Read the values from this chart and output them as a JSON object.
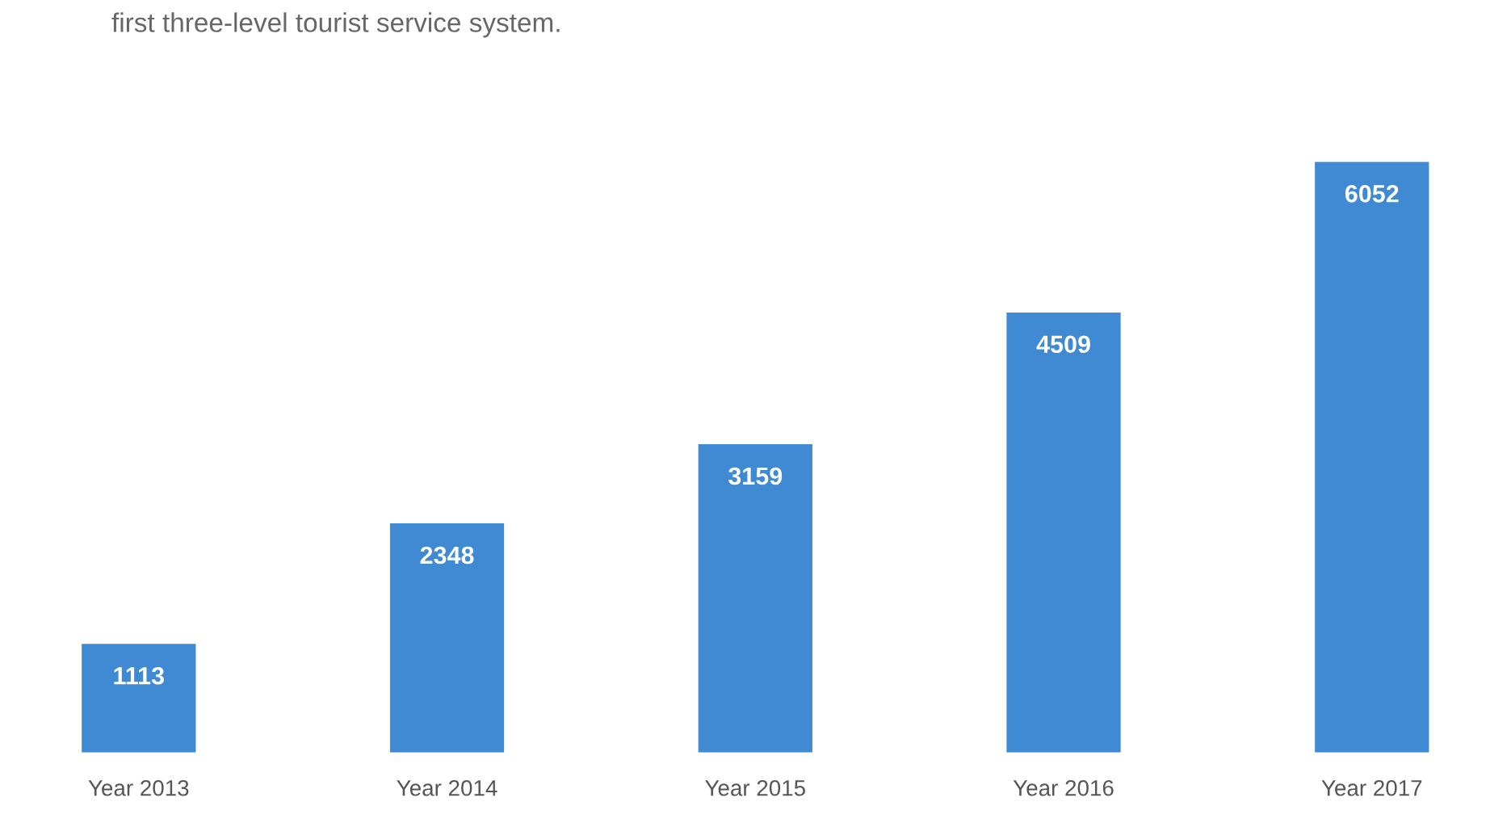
{
  "chart_data": {
    "type": "bar",
    "title": "first three-level tourist service system.",
    "categories": [
      "Year 2013",
      "Year 2014",
      "Year 2015",
      "Year 2016",
      "Year 2017"
    ],
    "values": [
      1113,
      2348,
      3159,
      4509,
      6052
    ],
    "color": "#3f8ad2",
    "data_labels": true,
    "grid": false,
    "legend": false,
    "tick_labels": "x"
  }
}
